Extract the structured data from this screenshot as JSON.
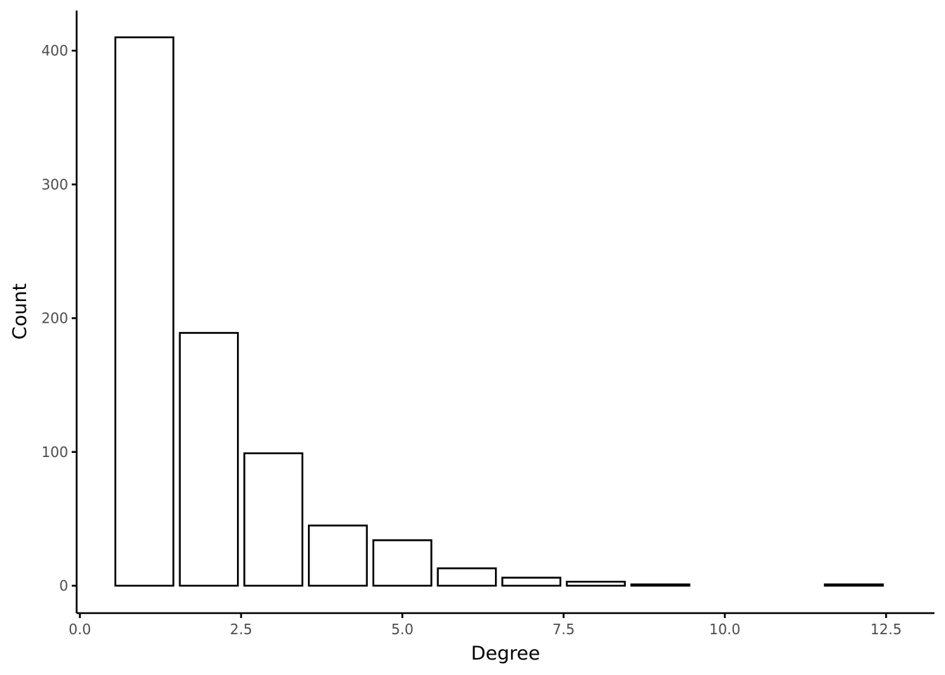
{
  "chart_data": {
    "type": "bar",
    "title": "",
    "xlabel": "Degree",
    "ylabel": "Count",
    "x": [
      1,
      2,
      3,
      4,
      5,
      6,
      7,
      8,
      9,
      12
    ],
    "values": [
      410,
      189,
      99,
      45,
      34,
      13,
      6,
      3,
      1,
      1
    ],
    "bar_width": 0.9,
    "xlim": [
      -0.05,
      13.25
    ],
    "ylim": [
      -20.5,
      430
    ],
    "x_ticks": [
      0,
      2.5,
      5,
      7.5,
      10,
      12.5
    ],
    "x_tick_labels": [
      "0.0",
      "2.5",
      "5.0",
      "7.5",
      "10.0",
      "12.5"
    ],
    "y_ticks": [
      0,
      100,
      200,
      300,
      400
    ],
    "y_tick_labels": [
      "0",
      "100",
      "200",
      "300",
      "400"
    ],
    "grid": false,
    "legend": "none",
    "colors": {
      "bar_fill": "#ffffff",
      "bar_outline": "#000000",
      "tick_text": "#4d4d4d",
      "axis": "#000000"
    }
  }
}
